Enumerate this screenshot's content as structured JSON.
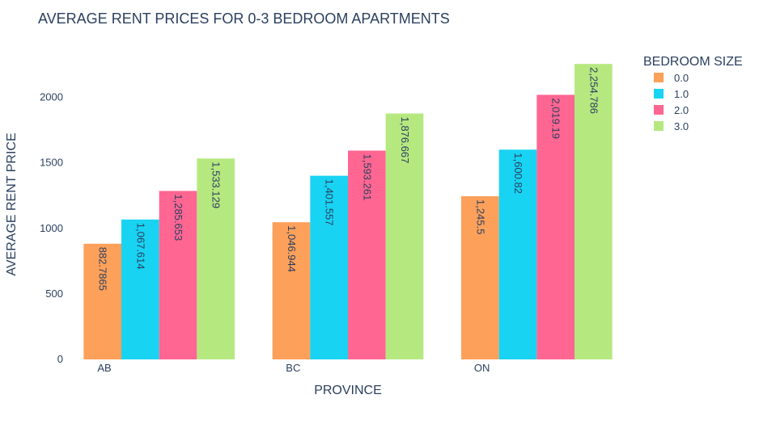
{
  "chart_data": {
    "type": "bar",
    "title": "AVERAGE RENT PRICES FOR 0-3 BEDROOM APARTMENTS",
    "xlabel": "PROVINCE",
    "ylabel": "AVERAGE RENT PRICE",
    "categories": [
      "AB",
      "BC",
      "ON"
    ],
    "yticks": [
      0,
      500,
      1000,
      1500,
      2000
    ],
    "ylim": [
      0,
      2373
    ],
    "legend_title": "BEDROOM SIZE",
    "legend_position": "top-right",
    "grid": false,
    "series": [
      {
        "name": "0.0",
        "color": "#fda05a",
        "values": [
          882.7865,
          1046.944,
          1245.5
        ],
        "labels": [
          "882.7865",
          "1,046.944",
          "1,245.5"
        ]
      },
      {
        "name": "1.0",
        "color": "#19d3f3",
        "values": [
          1067.614,
          1401.557,
          1600.82
        ],
        "labels": [
          "1,067.614",
          "1,401.557",
          "1,600.82"
        ]
      },
      {
        "name": "2.0",
        "color": "#ff6692",
        "values": [
          1285.653,
          1593.261,
          2019.19
        ],
        "labels": [
          "1,285.653",
          "1,593.261",
          "2,019.19"
        ]
      },
      {
        "name": "3.0",
        "color": "#b6e880",
        "values": [
          1533.129,
          1876.667,
          2254.786
        ],
        "labels": [
          "1,533.129",
          "1,876.667",
          "2,254.786"
        ]
      }
    ]
  }
}
